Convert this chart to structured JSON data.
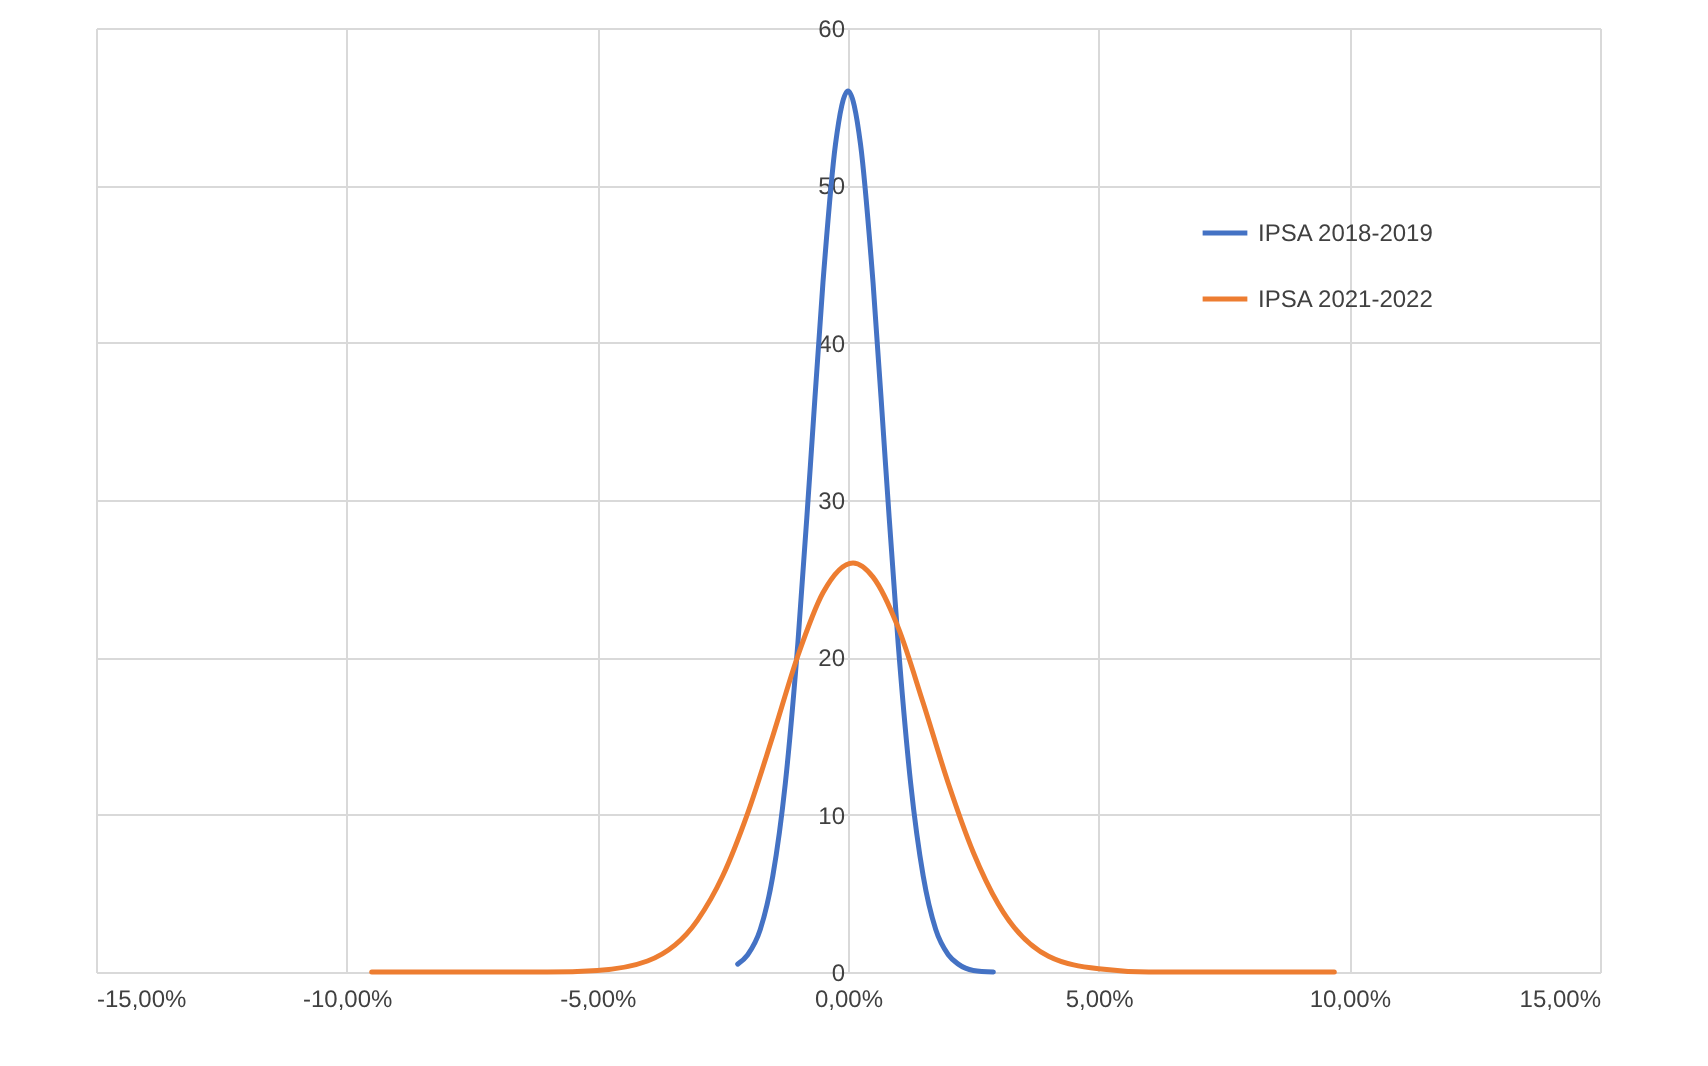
{
  "chart_data": {
    "type": "line",
    "xlim": [
      -15,
      15
    ],
    "ylim": [
      0,
      60
    ],
    "xticks": [
      {
        "value": -15,
        "label": "-15,00%"
      },
      {
        "value": -10,
        "label": "-10,00%"
      },
      {
        "value": -5,
        "label": "-5,00%"
      },
      {
        "value": 0,
        "label": "0,00%"
      },
      {
        "value": 5,
        "label": "5,00%"
      },
      {
        "value": 10,
        "label": "10,00%"
      },
      {
        "value": 15,
        "label": "15,00%"
      }
    ],
    "yticks": [
      0,
      10,
      20,
      30,
      40,
      50,
      60
    ],
    "grid": true,
    "legend": "top right",
    "marker": "none",
    "line_style": "solid",
    "series": [
      {
        "name": "IPSA 2018-2019",
        "color": "#4472c4",
        "x": [
          -2.2,
          -2,
          -1.75,
          -1.5,
          -1.25,
          -1,
          -0.75,
          -0.5,
          -0.25,
          0,
          0.25,
          0.5,
          0.75,
          1,
          1.25,
          1.5,
          1.75,
          2,
          2.2,
          2.5,
          2.9
        ],
        "values": [
          0.5,
          1.1,
          2.7,
          6.1,
          12,
          20.9,
          32.2,
          43.8,
          52.6,
          56,
          52.6,
          43.8,
          32.2,
          20.9,
          12,
          6.1,
          2.7,
          1.1,
          0.5,
          0.1,
          0
        ]
      },
      {
        "name": "IPSA 2021-2022",
        "color": "#ed7d31",
        "x": [
          -9.5,
          -8,
          -7,
          -6,
          -5,
          -4,
          -3,
          -2.5,
          -2,
          -1.5,
          -1,
          -0.5,
          0.1,
          0.5,
          1,
          1.5,
          2,
          2.5,
          3,
          4,
          5,
          6,
          7,
          8,
          9.7
        ],
        "values": [
          0,
          0,
          0,
          0,
          0.1,
          0.7,
          3.3,
          6.1,
          10.1,
          15,
          20.1,
          24.1,
          26,
          25.1,
          21.9,
          17.1,
          12,
          7.6,
          4.3,
          1,
          0.2,
          0,
          0,
          0,
          0
        ]
      }
    ]
  }
}
